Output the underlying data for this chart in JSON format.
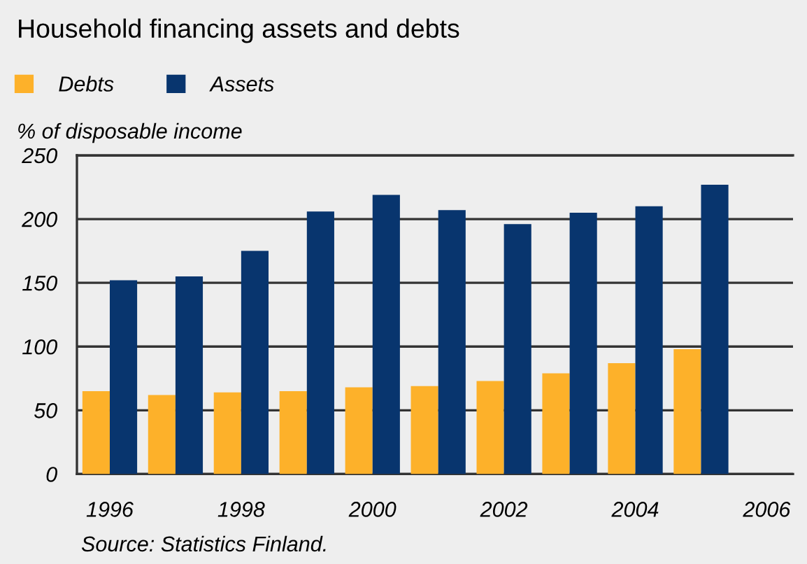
{
  "chart_data": {
    "type": "bar",
    "title": "Household financing assets and debts",
    "ylabel": "% of disposable income",
    "x": [
      1996,
      1997,
      1998,
      1999,
      2000,
      2001,
      2002,
      2003,
      2004,
      2005
    ],
    "series": [
      {
        "name": "Debts",
        "color": "#fdb12a",
        "values": [
          65,
          62,
          64,
          65,
          68,
          69,
          73,
          79,
          87,
          98
        ]
      },
      {
        "name": "Assets",
        "color": "#08356e",
        "values": [
          152,
          155,
          175,
          206,
          219,
          207,
          196,
          205,
          210,
          227
        ]
      }
    ],
    "xlim": [
      1995.5,
      2006.4
    ],
    "xticks": [
      1996,
      1998,
      2000,
      2002,
      2004,
      2006
    ],
    "ylim": [
      0,
      250
    ],
    "yticks": [
      0,
      50,
      100,
      150,
      200,
      250
    ],
    "grid": "y",
    "legend": "top left",
    "annotations": [
      "Source: Statistics Finland."
    ]
  }
}
